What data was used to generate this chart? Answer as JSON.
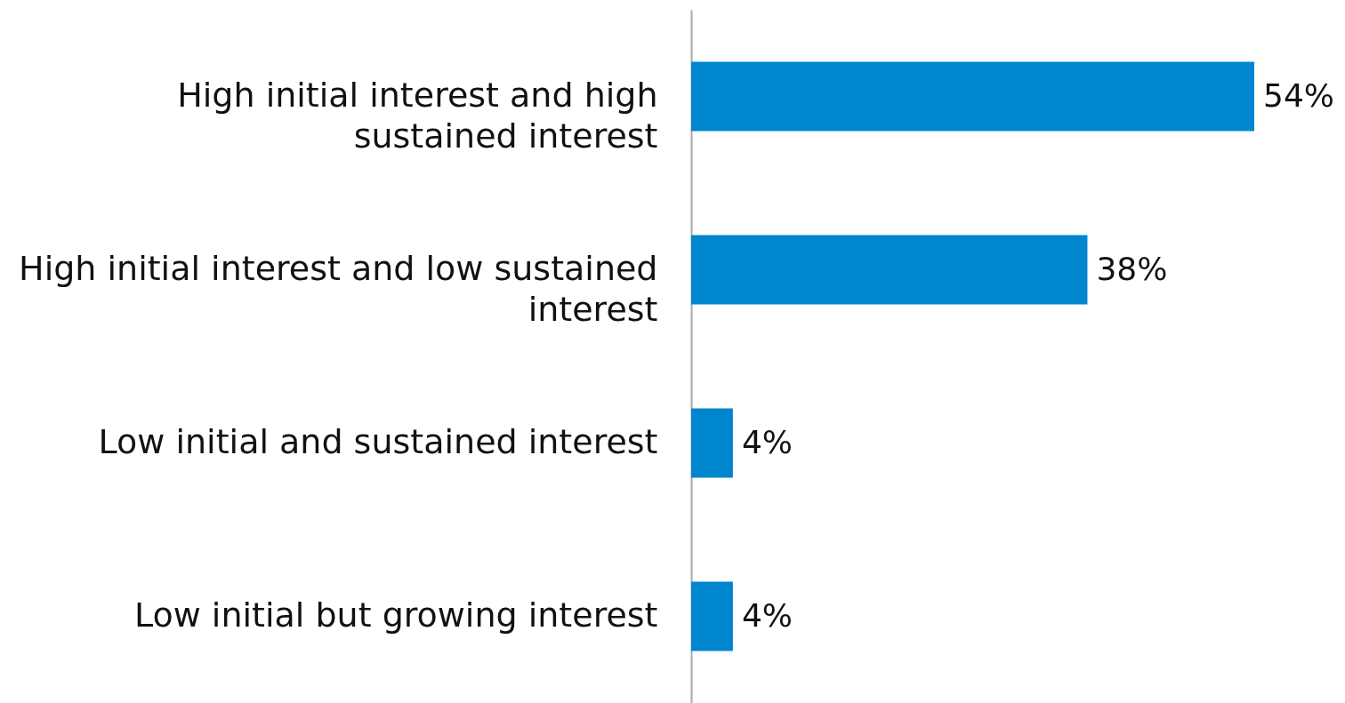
{
  "chart_data": {
    "type": "bar",
    "orientation": "horizontal",
    "categories": [
      "High initial interest and high sustained interest",
      "High initial interest and low sustained interest",
      "Low initial and sustained interest",
      "Low initial but growing interest"
    ],
    "values": [
      54,
      38,
      4,
      4
    ],
    "color": "#0085cf",
    "value_labels": [
      "54%",
      "38%",
      "4%",
      "4%"
    ]
  }
}
